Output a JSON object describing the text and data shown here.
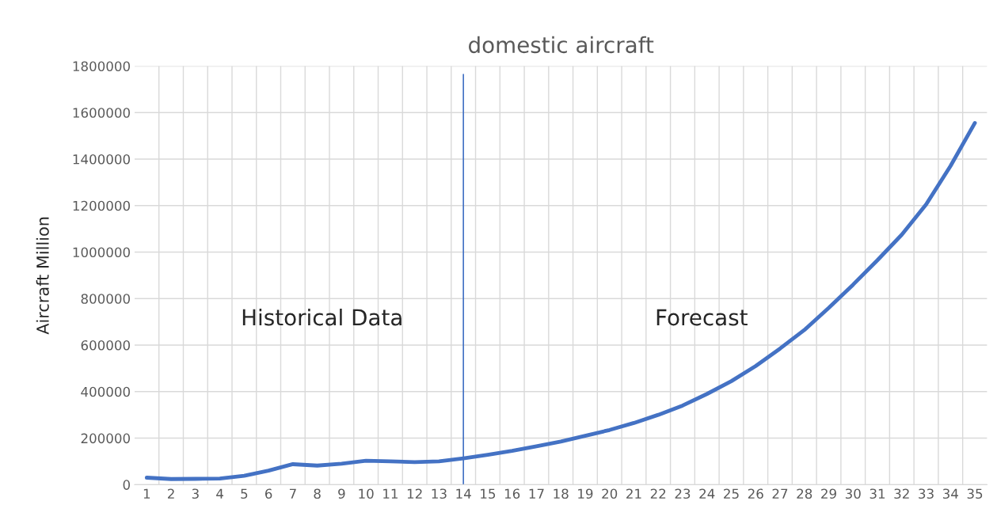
{
  "chart_data": {
    "type": "line",
    "title": "domestic aircraft",
    "ylabel": "Aircraft Million",
    "categories": [
      "1",
      "2",
      "3",
      "4",
      "5",
      "6",
      "7",
      "8",
      "9",
      "10",
      "11",
      "12",
      "13",
      "14",
      "15",
      "16",
      "17",
      "18",
      "19",
      "20",
      "21",
      "22",
      "23",
      "24",
      "25",
      "26",
      "27",
      "28",
      "29",
      "30",
      "31",
      "32",
      "33",
      "34",
      "35"
    ],
    "series": [
      {
        "color": "#4472c4",
        "values": [
          30000,
          24000,
          25000,
          26000,
          38000,
          60000,
          88000,
          82000,
          90000,
          103000,
          100000,
          97000,
          100000,
          113000,
          128000,
          145000,
          165000,
          185000,
          210000,
          235000,
          265000,
          300000,
          340000,
          390000,
          445000,
          510000,
          585000,
          665000,
          760000,
          860000,
          965000,
          1075000,
          1205000,
          1370000,
          1555000
        ]
      }
    ],
    "ylim": [
      0,
      1800000
    ],
    "yticks": [
      0,
      200000,
      400000,
      600000,
      800000,
      1000000,
      1200000,
      1400000,
      1600000,
      1800000
    ],
    "grid": true,
    "legend": false,
    "ref_lines": [
      {
        "axis": "x",
        "value": "14",
        "color": "#4472c4"
      }
    ],
    "annotations": [
      "Historical Data",
      "Forecast"
    ]
  }
}
